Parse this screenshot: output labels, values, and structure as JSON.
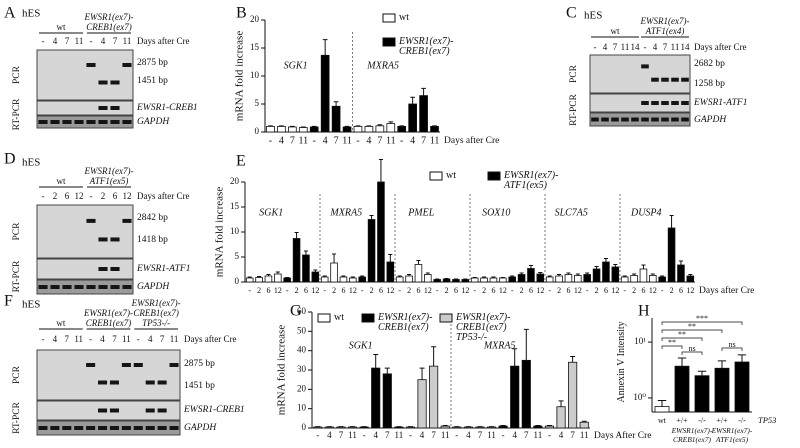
{
  "gels": [
    {
      "panel": "A",
      "cell": "hES",
      "groups": [
        {
          "label_lines": [
            "wt"
          ]
        },
        {
          "label_lines": [
            "EWSR1(ex7)-",
            "CREB1(ex7)"
          ]
        }
      ],
      "lanes": [
        "-",
        "4",
        "7",
        "11",
        "-",
        "4",
        "7",
        "11"
      ],
      "lanes_caption": "Days after Cre",
      "row_labels": [
        "PCR",
        "RT-PCR"
      ],
      "band_labels": [
        "2875 bp",
        "1451 bp",
        "EWSR1-CREB1",
        "GAPDH"
      ]
    },
    {
      "panel": "C",
      "cell": "hES",
      "groups": [
        {
          "label_lines": [
            "wt"
          ]
        },
        {
          "label_lines": [
            "EWSR1(ex7)-",
            "ATF1(ex4)"
          ]
        }
      ],
      "lanes": [
        "-",
        "4",
        "7",
        "11",
        "14",
        "-",
        "4",
        "7",
        "11",
        "14"
      ],
      "lanes_caption": "Days after Cre",
      "row_labels": [
        "PCR",
        "RT-PCR"
      ],
      "band_labels": [
        "2682 bp",
        "1258 bp",
        "EWSR1-ATF1",
        "GAPDH"
      ]
    },
    {
      "panel": "D",
      "cell": "hES",
      "groups": [
        {
          "label_lines": [
            "wt"
          ]
        },
        {
          "label_lines": [
            "EWSR1(ex7)-",
            "ATF1(ex5)"
          ]
        }
      ],
      "lanes": [
        "-",
        "2",
        "6",
        "12",
        "-",
        "2",
        "6",
        "12"
      ],
      "lanes_caption": "Days after Cre",
      "row_labels": [
        "PCR",
        "RT-PCR"
      ],
      "band_labels": [
        "2842 bp",
        "1418 bp",
        "EWSR1-ATF1",
        "GAPDH"
      ]
    },
    {
      "panel": "F",
      "cell": "hES",
      "groups": [
        {
          "label_lines": [
            "wt"
          ]
        },
        {
          "label_lines": [
            "EWSR1(ex7)-",
            "CREB1(ex7)"
          ]
        },
        {
          "label_lines": [
            "EWSR1(ex7)-",
            "CREB1(ex7)",
            "TP53-/-"
          ]
        }
      ],
      "lanes": [
        "-",
        "4",
        "7",
        "11",
        "-",
        "4",
        "7",
        "11",
        "-",
        "4",
        "7",
        "11"
      ],
      "lanes_caption": "Days after Cre",
      "row_labels": [
        "PCR",
        "RT-PCR"
      ],
      "band_labels": [
        "2875 bp",
        "1451 bp",
        "EWSR1-CREB1",
        "GAPDH"
      ]
    }
  ],
  "chart_data": [
    {
      "type": "bar",
      "panel": "B",
      "ylabel": "mRNA fold increase",
      "xlabel": "Days after Cre",
      "groups": [
        "SGK1",
        "MXRA5"
      ],
      "categories": [
        "-",
        "4",
        "7",
        "11",
        "-",
        "4",
        "7",
        "11",
        "-",
        "4",
        "7",
        "11",
        "-",
        "4",
        "7",
        "11"
      ],
      "series": [
        {
          "name": "wt",
          "color": "#ffffff",
          "values": [
            1.0,
            1.0,
            0.9,
            0.8,
            null,
            null,
            null,
            null,
            1.0,
            1.0,
            1.1,
            1.5,
            null,
            null,
            null,
            null
          ],
          "errors": [
            0.1,
            0.1,
            0.1,
            0.1,
            null,
            null,
            null,
            null,
            0.1,
            0.1,
            0.2,
            0.3,
            null,
            null,
            null,
            null
          ]
        },
        {
          "name": "EWSR1(ex7)-CREB1(ex7)",
          "color": "#000000",
          "values": [
            null,
            null,
            null,
            null,
            0.9,
            13.7,
            4.6,
            0.9,
            null,
            null,
            null,
            null,
            1.0,
            5.0,
            6.5,
            1.0
          ],
          "errors": [
            null,
            null,
            null,
            null,
            0.1,
            2.8,
            0.8,
            0.1,
            null,
            null,
            null,
            null,
            0.1,
            1.2,
            1.3,
            0.1
          ]
        }
      ],
      "ylim": [
        0,
        20
      ],
      "yticks": [
        0,
        5,
        10,
        15,
        20
      ]
    },
    {
      "type": "bar",
      "panel": "E",
      "ylabel": "mRNA fold increase",
      "xlabel": "Days after Cre",
      "groups": [
        "SGK1",
        "MXRA5",
        "PMEL",
        "SOX10",
        "SLC7A5",
        "DUSP4"
      ],
      "categories": [
        "-",
        "2",
        "6",
        "12",
        "-",
        "2",
        "6",
        "12",
        "-",
        "2",
        "6",
        "12",
        "-",
        "2",
        "6",
        "12",
        "-",
        "2",
        "6",
        "12",
        "-",
        "2",
        "6",
        "12",
        "-",
        "2",
        "6",
        "12",
        "-",
        "2",
        "6",
        "12",
        "-",
        "2",
        "6",
        "12",
        "-",
        "2",
        "6",
        "12",
        "-",
        "2",
        "6",
        "12",
        "-",
        "2",
        "6",
        "12"
      ],
      "series": [
        {
          "name": "wt",
          "color": "#ffffff",
          "values": [
            0.8,
            0.9,
            1.2,
            1.6,
            null,
            null,
            null,
            null,
            1.0,
            3.8,
            1.0,
            0.8,
            null,
            null,
            null,
            null,
            1.0,
            1.2,
            3.5,
            1.5,
            null,
            null,
            null,
            null,
            0.8,
            0.8,
            0.8,
            0.8,
            null,
            null,
            null,
            null,
            1.0,
            1.2,
            1.5,
            1.3,
            null,
            null,
            null,
            null,
            1.0,
            1.3,
            2.6,
            1.3,
            null,
            null,
            null,
            null
          ],
          "errors": [
            0.2,
            0.2,
            0.3,
            0.4,
            null,
            null,
            null,
            null,
            0.2,
            1.8,
            0.2,
            0.2,
            null,
            null,
            null,
            null,
            0.2,
            0.3,
            0.8,
            0.3,
            null,
            null,
            null,
            null,
            0.1,
            0.2,
            0.2,
            0.1,
            null,
            null,
            null,
            null,
            0.2,
            0.3,
            0.3,
            0.3,
            null,
            null,
            null,
            null,
            0.2,
            0.3,
            0.8,
            0.3,
            null,
            null,
            null,
            null
          ]
        },
        {
          "name": "EWSR1(ex7)-ATF1(ex5)",
          "color": "#000000",
          "values": [
            null,
            null,
            null,
            null,
            0.8,
            8.7,
            5.4,
            2.0,
            null,
            null,
            null,
            null,
            1.0,
            12.5,
            20.0,
            4.0,
            null,
            null,
            null,
            null,
            0.5,
            0.6,
            0.5,
            0.5,
            null,
            null,
            null,
            null,
            1.0,
            1.5,
            2.7,
            1.6,
            null,
            null,
            null,
            null,
            1.5,
            2.6,
            4.0,
            3.0,
            null,
            null,
            null,
            null,
            1.0,
            10.8,
            3.4,
            1.2
          ],
          "errors": [
            null,
            null,
            null,
            null,
            0.1,
            1.2,
            0.8,
            0.4,
            null,
            null,
            null,
            null,
            0.2,
            0.8,
            4.5,
            1.5,
            null,
            null,
            null,
            null,
            0.1,
            0.1,
            0.1,
            0.1,
            null,
            null,
            null,
            null,
            0.2,
            0.3,
            0.6,
            0.3,
            null,
            null,
            null,
            null,
            0.3,
            0.5,
            0.7,
            0.5,
            null,
            null,
            null,
            null,
            0.2,
            2.5,
            0.8,
            0.3
          ]
        }
      ],
      "ylim": [
        0,
        20
      ],
      "yticks": [
        0,
        5,
        10,
        15,
        20
      ]
    },
    {
      "type": "bar",
      "panel": "G",
      "ylabel": "mRNA fold increase",
      "xlabel": "Days After Cre",
      "groups": [
        "SGK1",
        "MXRA5"
      ],
      "categories": [
        "-",
        "4",
        "7",
        "11",
        "-",
        "4",
        "7",
        "11",
        "-",
        "4",
        "7",
        "11",
        "-",
        "4",
        "7",
        "11",
        "-",
        "4",
        "7",
        "11",
        "-",
        "4",
        "7",
        "11"
      ],
      "series": [
        {
          "name": "wt",
          "color": "#ffffff",
          "values": [
            0.5,
            0.5,
            0.5,
            0.5,
            null,
            null,
            null,
            null,
            null,
            null,
            null,
            null,
            0.5,
            0.5,
            0.5,
            0.5,
            null,
            null,
            null,
            null,
            null,
            null,
            null,
            null
          ],
          "errors": [
            0.2,
            0.2,
            0.2,
            0.2,
            null,
            null,
            null,
            null,
            null,
            null,
            null,
            null,
            0.2,
            0.2,
            0.2,
            0.2,
            null,
            null,
            null,
            null,
            null,
            null,
            null,
            null
          ]
        },
        {
          "name": "EWSR1(ex7)-CREB1(ex7)",
          "color": "#000000",
          "values": [
            null,
            null,
            null,
            null,
            0.5,
            31,
            28,
            0.5,
            null,
            null,
            null,
            null,
            null,
            null,
            null,
            null,
            1.0,
            32,
            35,
            1.0,
            null,
            null,
            null,
            null
          ],
          "errors": [
            null,
            null,
            null,
            null,
            0.2,
            7,
            3,
            0.2,
            null,
            null,
            null,
            null,
            null,
            null,
            null,
            null,
            0.3,
            9,
            16,
            0.3,
            null,
            null,
            null,
            null
          ]
        },
        {
          "name": "EWSR1(ex7)-CREB1(ex7) TP53-/-",
          "color": "#cccccc",
          "values": [
            null,
            null,
            null,
            null,
            null,
            null,
            null,
            null,
            0.5,
            25,
            32,
            1.0,
            null,
            null,
            null,
            null,
            null,
            null,
            null,
            null,
            1.0,
            11,
            34,
            3.0
          ],
          "errors": [
            null,
            null,
            null,
            null,
            null,
            null,
            null,
            null,
            0.2,
            6,
            10,
            0.3,
            null,
            null,
            null,
            null,
            null,
            null,
            null,
            null,
            0.3,
            3,
            3,
            0.5
          ]
        }
      ],
      "ylim": [
        0,
        60
      ],
      "yticks": [
        0,
        10,
        20,
        30,
        40,
        50,
        60
      ]
    },
    {
      "type": "bar",
      "panel": "H",
      "ylabel": "Annexin V Intensity",
      "log_scale": true,
      "categories": [
        "wt",
        "+/+",
        "-/-",
        "+/+",
        "-/-"
      ],
      "groups": [
        "EWSR1(ex7)-CREB1(ex7)",
        "EWSR1(ex7)-ATF1(ex5)"
      ],
      "row_label": "TP53",
      "series": [
        {
          "colors": [
            "#ffffff",
            "#000000",
            "#000000",
            "#000000",
            "#000000"
          ],
          "values": [
            0.7,
            3.7,
            2.5,
            3.4,
            4.4
          ],
          "errors": [
            0.2,
            1.5,
            0.5,
            1.2,
            1.5
          ]
        }
      ],
      "annotations": [
        "***",
        "**",
        "**",
        "**",
        "ns",
        "ns"
      ],
      "ylim": [
        0.56,
        27
      ],
      "yticks": [
        {
          "value": 1,
          "label": "10⁰"
        },
        {
          "value": 10,
          "label": "10¹"
        }
      ]
    }
  ]
}
